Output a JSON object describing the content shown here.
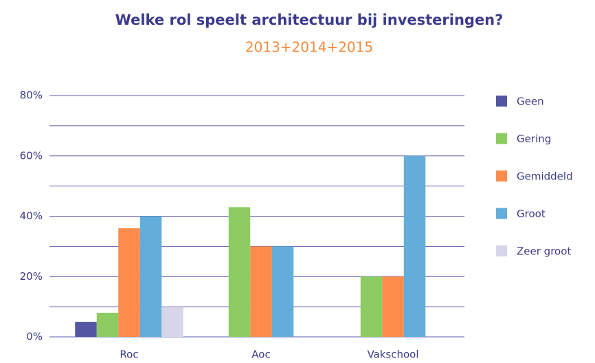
{
  "chart_data": {
    "type": "bar",
    "title": "Welke rol speelt architectuur bij investeringen?",
    "subtitle": "2013+2014+2015",
    "categories": [
      "Roc",
      "Aoc",
      "Vakschool"
    ],
    "series": [
      {
        "name": "Geen",
        "color": "#5456a4",
        "values": [
          5,
          0,
          0
        ]
      },
      {
        "name": "Gering",
        "color": "#8ccc62",
        "values": [
          8,
          43,
          20
        ]
      },
      {
        "name": "Gemiddeld",
        "color": "#fb8c4c",
        "values": [
          36,
          30,
          20
        ]
      },
      {
        "name": "Groot",
        "color": "#63addb",
        "values": [
          40,
          30,
          60
        ]
      },
      {
        "name": "Zeer groot",
        "color": "#d6d6ea",
        "values": [
          10,
          0,
          0
        ]
      }
    ],
    "ylim": [
      0,
      80
    ],
    "yticks": [
      {
        "value": 0,
        "label": "0%"
      },
      {
        "value": 20,
        "label": "20%"
      },
      {
        "value": 40,
        "label": "40%"
      },
      {
        "value": 60,
        "label": "60%"
      },
      {
        "value": 80,
        "label": "80%"
      }
    ],
    "minor_yticks": [
      10,
      30,
      50,
      70
    ],
    "grid": true,
    "legend": "right"
  }
}
